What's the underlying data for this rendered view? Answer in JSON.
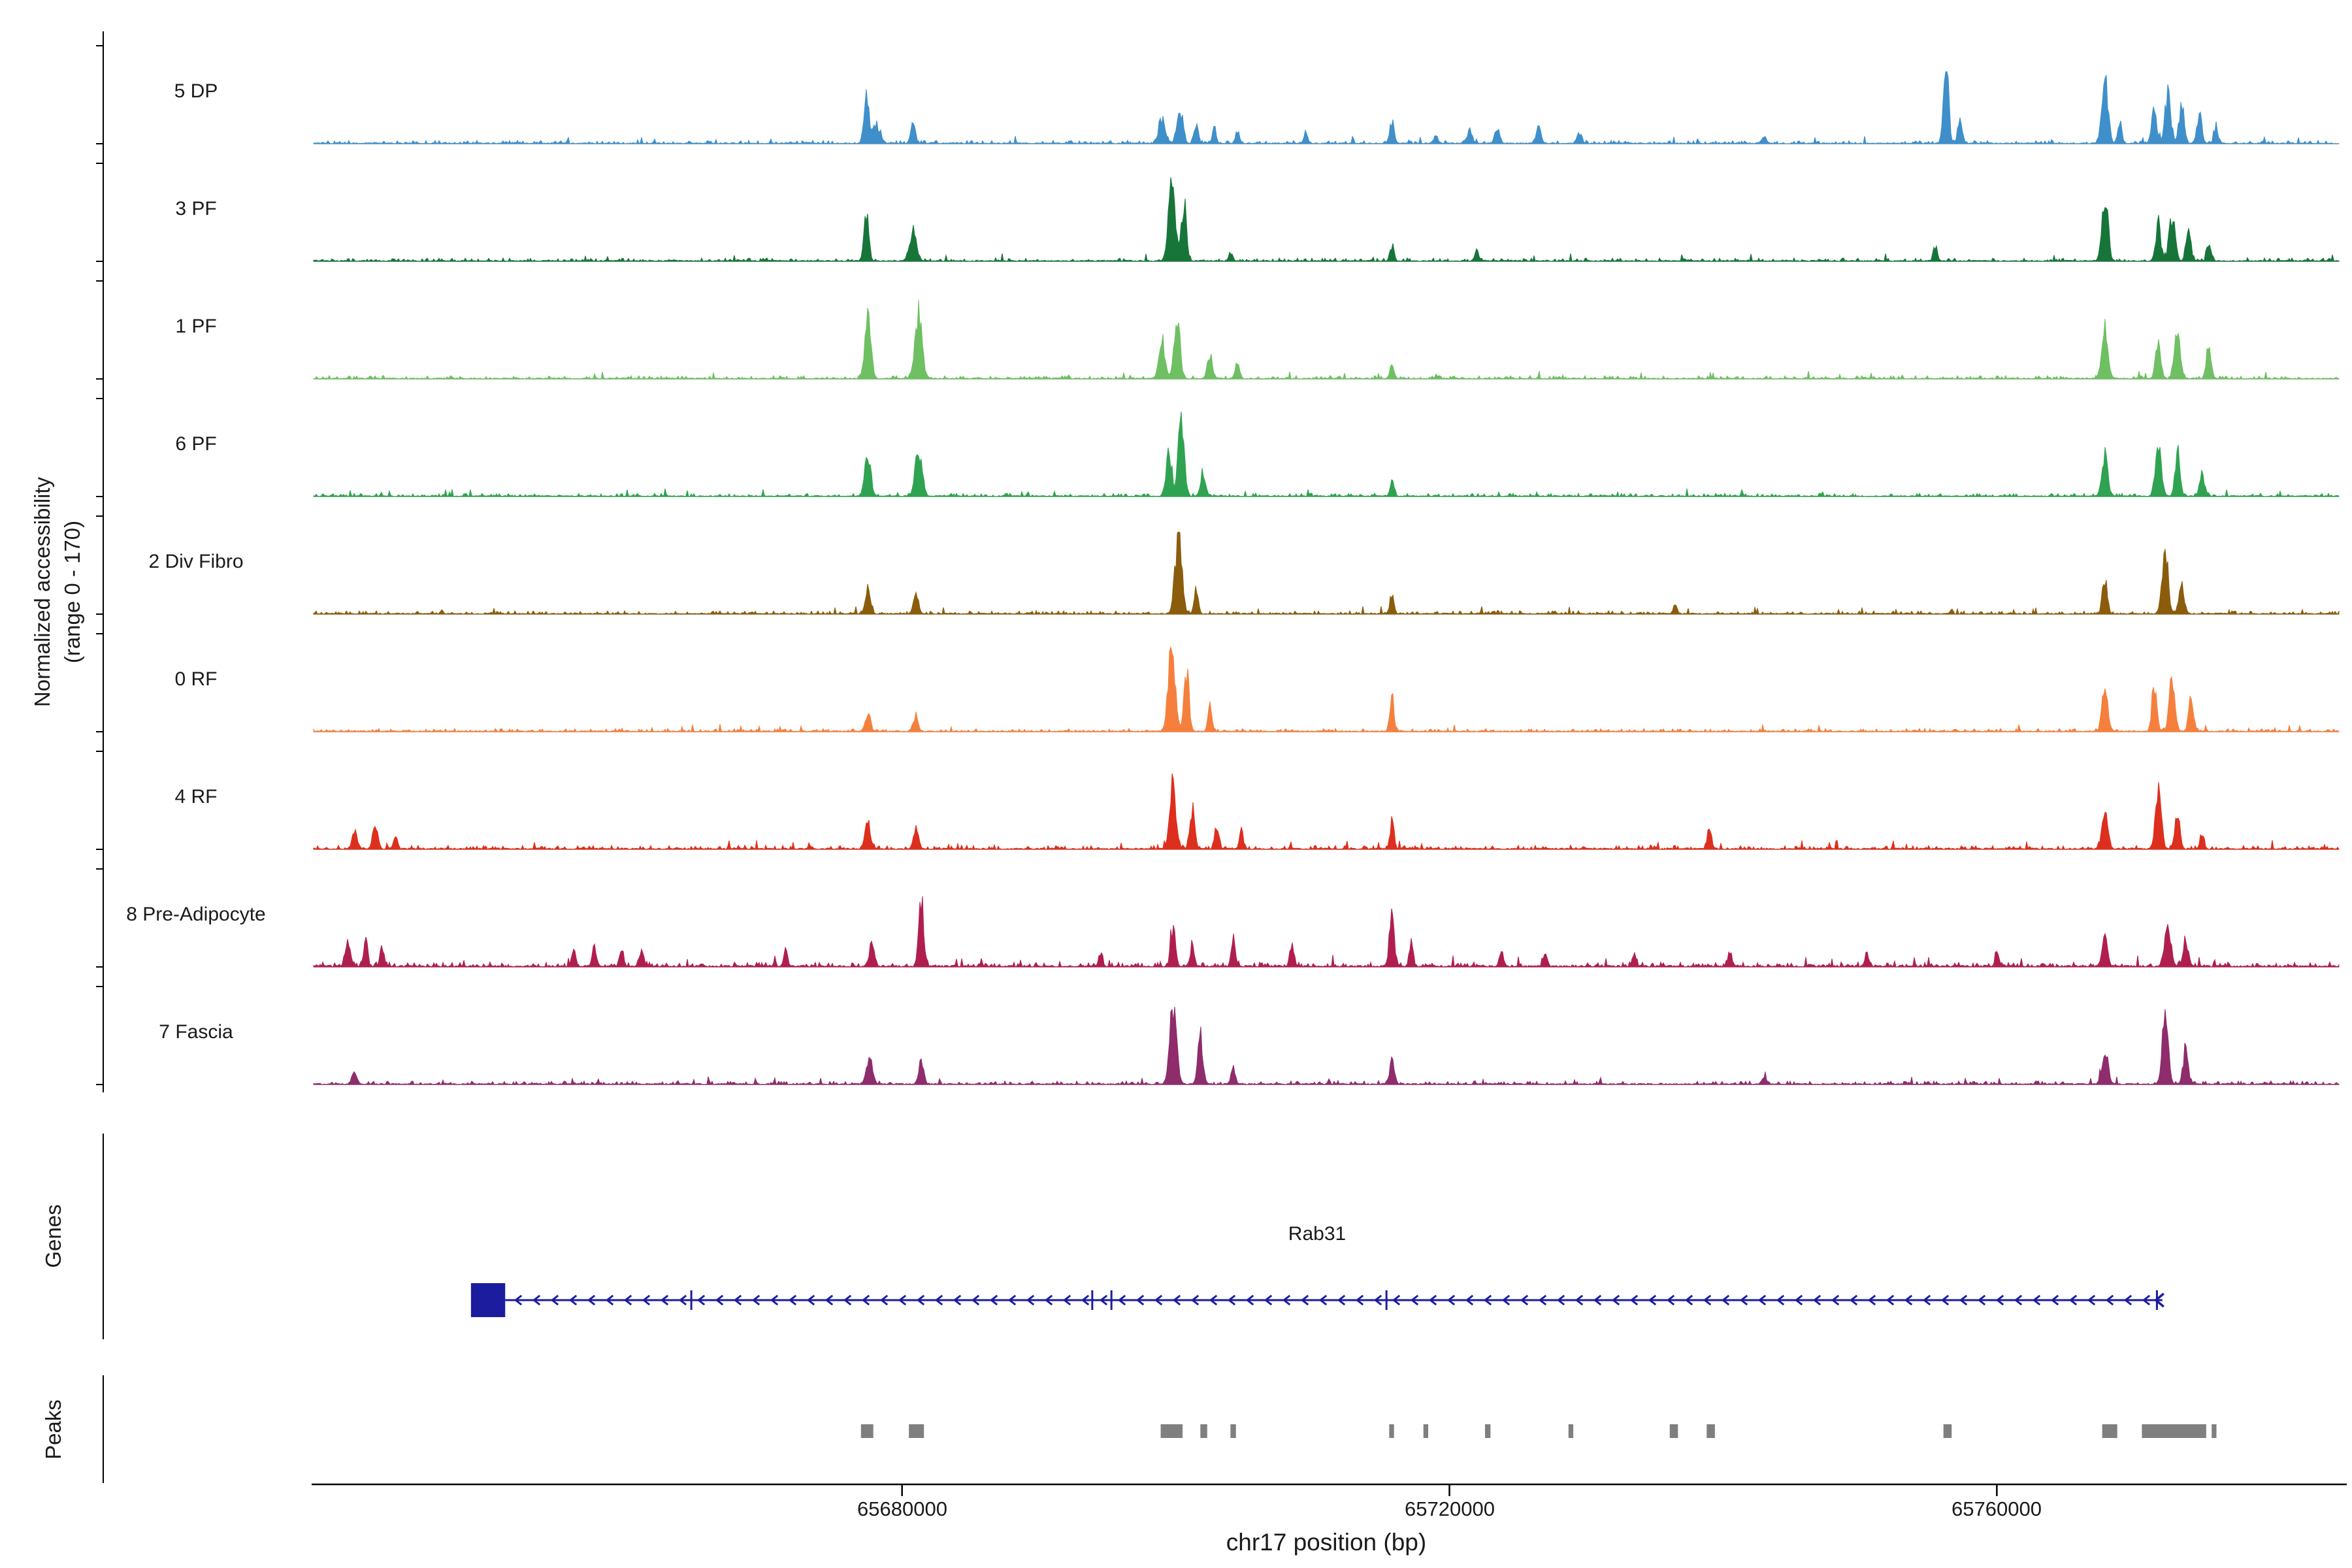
{
  "chart_data": {
    "type": "area",
    "title": "",
    "ylabel_line1": "Normalized accessibility",
    "ylabel_line2": "(range 0 - 170)",
    "xlabel": "chr17 position (bp)",
    "section_labels": {
      "genes": "Genes",
      "peaks": "Peaks"
    },
    "xlim": [
      65637000,
      65785000
    ],
    "x_ticks": [
      65680000,
      65720000,
      65760000
    ],
    "x_tick_labels": [
      "65680000",
      "65720000",
      "65760000"
    ],
    "track_range": [
      0,
      170
    ],
    "baseline_color": "#999999",
    "axis_color": "#000000",
    "peak_color": "#7f7f7f",
    "tracks": [
      {
        "label": "5 DP",
        "color": "#3f8fca",
        "noise": 1.0,
        "peaks": [
          [
            65677400,
            0.6,
            500
          ],
          [
            65678100,
            0.25,
            800
          ],
          [
            65680800,
            0.22,
            500
          ],
          [
            65699000,
            0.3,
            700
          ],
          [
            65700300,
            0.45,
            600
          ],
          [
            65701500,
            0.25,
            400
          ],
          [
            65702800,
            0.18,
            400
          ],
          [
            65704500,
            0.15,
            400
          ],
          [
            65709500,
            0.14,
            400
          ],
          [
            65715800,
            0.28,
            400
          ],
          [
            65719000,
            0.1,
            400
          ],
          [
            65721500,
            0.15,
            500
          ],
          [
            65723500,
            0.17,
            500
          ],
          [
            65726500,
            0.18,
            500
          ],
          [
            65729500,
            0.12,
            500
          ],
          [
            65743000,
            0.08,
            500
          ],
          [
            65756300,
            0.95,
            500
          ],
          [
            65757300,
            0.35,
            400
          ],
          [
            65767900,
            0.85,
            600
          ],
          [
            65769000,
            0.3,
            400
          ],
          [
            65771500,
            0.45,
            500
          ],
          [
            65772500,
            0.6,
            600
          ],
          [
            65773500,
            0.5,
            500
          ],
          [
            65774800,
            0.35,
            500
          ],
          [
            65776000,
            0.2,
            400
          ]
        ]
      },
      {
        "label": "3 PF",
        "color": "#17753a",
        "noise": 1.0,
        "peaks": [
          [
            65677400,
            0.55,
            500
          ],
          [
            65680800,
            0.35,
            700
          ],
          [
            65699700,
            0.95,
            700
          ],
          [
            65700600,
            0.7,
            500
          ],
          [
            65704000,
            0.1,
            400
          ],
          [
            65715800,
            0.2,
            400
          ],
          [
            65722000,
            0.12,
            400
          ],
          [
            65755500,
            0.18,
            400
          ],
          [
            65767900,
            0.9,
            600
          ],
          [
            65771800,
            0.5,
            500
          ],
          [
            65772800,
            0.55,
            600
          ],
          [
            65774000,
            0.4,
            500
          ],
          [
            65775500,
            0.25,
            400
          ]
        ]
      },
      {
        "label": "1 PF",
        "color": "#6fbf63",
        "noise": 1.0,
        "peaks": [
          [
            65677500,
            0.85,
            600
          ],
          [
            65681200,
            0.8,
            700
          ],
          [
            65699000,
            0.5,
            600
          ],
          [
            65700100,
            0.75,
            600
          ],
          [
            65702500,
            0.3,
            500
          ],
          [
            65704500,
            0.18,
            400
          ],
          [
            65715800,
            0.2,
            400
          ],
          [
            65767900,
            0.6,
            600
          ],
          [
            65771800,
            0.5,
            500
          ],
          [
            65773200,
            0.55,
            600
          ],
          [
            65775500,
            0.35,
            500
          ]
        ]
      },
      {
        "label": "6 PF",
        "color": "#2fa351",
        "noise": 1.0,
        "peaks": [
          [
            65677500,
            0.5,
            600
          ],
          [
            65681200,
            0.55,
            700
          ],
          [
            65699500,
            0.55,
            600
          ],
          [
            65700400,
            0.95,
            600
          ],
          [
            65702000,
            0.3,
            500
          ],
          [
            65715800,
            0.2,
            400
          ],
          [
            65767900,
            0.5,
            600
          ],
          [
            65771800,
            0.65,
            600
          ],
          [
            65773200,
            0.55,
            500
          ],
          [
            65775000,
            0.25,
            500
          ]
        ]
      },
      {
        "label": "2 Div Fibro",
        "color": "#8a5c0c",
        "noise": 1.0,
        "peaks": [
          [
            65677500,
            0.3,
            500
          ],
          [
            65681000,
            0.3,
            500
          ],
          [
            65700200,
            0.9,
            700
          ],
          [
            65701500,
            0.3,
            400
          ],
          [
            65715800,
            0.25,
            400
          ],
          [
            65736500,
            0.1,
            400
          ],
          [
            65767900,
            0.45,
            500
          ],
          [
            65772300,
            0.8,
            600
          ],
          [
            65773500,
            0.4,
            500
          ]
        ]
      },
      {
        "label": "0 RF",
        "color": "#f5803e",
        "noise": 1.0,
        "peaks": [
          [
            65677500,
            0.25,
            500
          ],
          [
            65681000,
            0.2,
            500
          ],
          [
            65699700,
            1.0,
            700
          ],
          [
            65700800,
            0.75,
            500
          ],
          [
            65702500,
            0.3,
            400
          ],
          [
            65715800,
            0.45,
            400
          ],
          [
            65767900,
            0.5,
            600
          ],
          [
            65771500,
            0.55,
            500
          ],
          [
            65772800,
            0.6,
            600
          ],
          [
            65774200,
            0.4,
            500
          ]
        ]
      },
      {
        "label": "4 RF",
        "color": "#dd2f1e",
        "noise": 1.2,
        "peaks": [
          [
            65640000,
            0.22,
            500
          ],
          [
            65641500,
            0.28,
            500
          ],
          [
            65643000,
            0.15,
            400
          ],
          [
            65677500,
            0.3,
            600
          ],
          [
            65681000,
            0.25,
            500
          ],
          [
            65699800,
            0.85,
            600
          ],
          [
            65701200,
            0.5,
            500
          ],
          [
            65703000,
            0.3,
            400
          ],
          [
            65704800,
            0.25,
            400
          ],
          [
            65715800,
            0.35,
            400
          ],
          [
            65739000,
            0.28,
            400
          ],
          [
            65767900,
            0.4,
            600
          ],
          [
            65771800,
            0.75,
            600
          ],
          [
            65773200,
            0.5,
            500
          ],
          [
            65775000,
            0.2,
            400
          ]
        ]
      },
      {
        "label": "8 Pre-Adipocyte",
        "color": "#b01e50",
        "noise": 1.5,
        "peaks": [
          [
            65639500,
            0.3,
            500
          ],
          [
            65640800,
            0.35,
            400
          ],
          [
            65642000,
            0.25,
            400
          ],
          [
            65656000,
            0.22,
            400
          ],
          [
            65657500,
            0.25,
            400
          ],
          [
            65659500,
            0.2,
            400
          ],
          [
            65661000,
            0.18,
            400
          ],
          [
            65671500,
            0.2,
            400
          ],
          [
            65677800,
            0.28,
            500
          ],
          [
            65681400,
            0.85,
            500
          ],
          [
            65694500,
            0.18,
            400
          ],
          [
            65699800,
            0.45,
            500
          ],
          [
            65701200,
            0.3,
            400
          ],
          [
            65704200,
            0.35,
            400
          ],
          [
            65708500,
            0.3,
            400
          ],
          [
            65715800,
            0.6,
            500
          ],
          [
            65717200,
            0.3,
            400
          ],
          [
            65723800,
            0.2,
            400
          ],
          [
            65727000,
            0.15,
            400
          ],
          [
            65733500,
            0.15,
            400
          ],
          [
            65740500,
            0.18,
            400
          ],
          [
            65750500,
            0.18,
            400
          ],
          [
            65760000,
            0.18,
            400
          ],
          [
            65767900,
            0.4,
            500
          ],
          [
            65772500,
            0.5,
            600
          ],
          [
            65773800,
            0.35,
            500
          ]
        ]
      },
      {
        "label": "7 Fascia",
        "color": "#8e2c6c",
        "noise": 1.1,
        "peaks": [
          [
            65640000,
            0.18,
            500
          ],
          [
            65677600,
            0.35,
            600
          ],
          [
            65681400,
            0.3,
            500
          ],
          [
            65699800,
            0.95,
            700
          ],
          [
            65701800,
            0.6,
            500
          ],
          [
            65704200,
            0.2,
            400
          ],
          [
            65715800,
            0.3,
            400
          ],
          [
            65743000,
            0.1,
            400
          ],
          [
            65767900,
            0.45,
            600
          ],
          [
            65772300,
            0.8,
            600
          ],
          [
            65773800,
            0.45,
            500
          ]
        ]
      }
    ],
    "gene": {
      "name": "Rab31",
      "color": "#1c1c9e",
      "strand": "-",
      "box": [
        65648500,
        65651000
      ],
      "line_start": 65651000,
      "line_end": 65772100,
      "exon_ticks": [
        65664600,
        65693900,
        65695300,
        65715400,
        65771700
      ]
    },
    "peak_regions": [
      [
        65677000,
        65677900
      ],
      [
        65680500,
        65681600
      ],
      [
        65698900,
        65700500
      ],
      [
        65701800,
        65702300
      ],
      [
        65704000,
        65704400
      ],
      [
        65715600,
        65715950
      ],
      [
        65718100,
        65718450
      ],
      [
        65722600,
        65723000
      ],
      [
        65728700,
        65729050
      ],
      [
        65736100,
        65736700
      ],
      [
        65738800,
        65739400
      ],
      [
        65756100,
        65756700
      ],
      [
        65767700,
        65768800
      ],
      [
        65770600,
        65775300
      ],
      [
        65775700,
        65776050
      ]
    ]
  }
}
